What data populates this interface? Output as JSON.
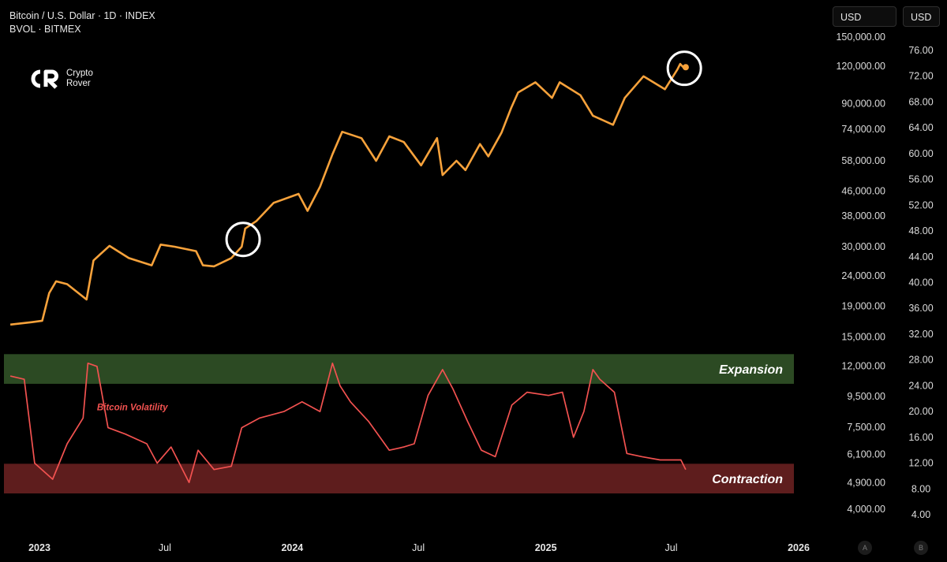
{
  "header": {
    "symbol_line": "Bitcoin / U.S. Dollar · 1D · INDEX",
    "indicator_line": "BVOL · BITMEX"
  },
  "logo": {
    "line1": "Crypto",
    "line2": "Rover"
  },
  "toolbar": {
    "left_unit": "USD",
    "right_unit": "USD"
  },
  "bottom_buttons": {
    "a": "A",
    "b": "B"
  },
  "colors": {
    "price": "#f7a23b",
    "volatility": "#f25250",
    "expansion": "#2c4a23",
    "contraction": "#5e1d1d"
  },
  "chart_data": {
    "type": "line",
    "title": "Bitcoin / U.S. Dollar · 1D · INDEX",
    "x_tick_labels": [
      "2023",
      "Jul",
      "2024",
      "Jul",
      "2025",
      "Jul",
      "2026"
    ],
    "x_range": [
      "2022-11-20",
      "2026-01-10"
    ],
    "log_scale_left": true,
    "left_axis": {
      "ticks": [
        "150,000.00",
        "120,000.00",
        "90,000.00",
        "74,000.00",
        "58,000.00",
        "46,000.00",
        "38,000.00",
        "30,000.00",
        "24,000.00",
        "19,000.00",
        "15,000.00",
        "12,000.00",
        "9,500.00",
        "7,500.00",
        "6,100.00",
        "4,900.00",
        "4,000.00"
      ]
    },
    "right_axis": {
      "ticks": [
        "76.00",
        "72.00",
        "68.00",
        "64.00",
        "60.00",
        "56.00",
        "52.00",
        "48.00",
        "44.00",
        "40.00",
        "36.00",
        "32.00",
        "28.00",
        "24.00",
        "20.00",
        "16.00",
        "12.00",
        "8.00",
        "4.00"
      ]
    },
    "series": [
      {
        "type": "line",
        "axis": "left",
        "x": [
          "2022-11-20",
          "2022-12-20",
          "2023-01-05",
          "2023-01-15",
          "2023-01-25",
          "2023-02-10",
          "2023-03-10",
          "2023-03-20",
          "2023-04-12",
          "2023-05-10",
          "2023-06-12",
          "2023-06-25",
          "2023-07-15",
          "2023-08-15",
          "2023-08-25",
          "2023-09-10",
          "2023-10-05",
          "2023-10-20",
          "2023-10-25",
          "2023-11-10",
          "2023-12-05",
          "2024-01-10",
          "2024-01-23",
          "2024-02-10",
          "2024-02-28",
          "2024-03-13",
          "2024-04-10",
          "2024-05-01",
          "2024-05-20",
          "2024-06-10",
          "2024-07-05",
          "2024-07-28",
          "2024-08-05",
          "2024-08-25",
          "2024-09-07",
          "2024-09-28",
          "2024-10-10",
          "2024-10-29",
          "2024-11-12",
          "2024-11-22",
          "2024-12-17",
          "2025-01-10",
          "2025-01-21",
          "2025-02-20",
          "2025-03-10",
          "2025-04-08",
          "2025-04-25",
          "2025-05-22",
          "2025-06-22",
          "2025-07-10",
          "2025-07-14",
          "2025-07-20",
          "2025-07-22"
        ],
        "y": [
          16500,
          16800,
          17000,
          21000,
          23000,
          22500,
          20000,
          27000,
          30200,
          27500,
          26000,
          30500,
          30000,
          29000,
          26000,
          25800,
          27500,
          30000,
          34500,
          36500,
          42000,
          45000,
          39500,
          47500,
          61000,
          72500,
          69000,
          58000,
          70000,
          67000,
          56000,
          69000,
          52000,
          58000,
          54000,
          66000,
          60000,
          72000,
          87000,
          98000,
          106000,
          94000,
          106000,
          96000,
          82000,
          76500,
          94000,
          111000,
          100500,
          117000,
          122000,
          118000,
          119000
        ]
      },
      {
        "type": "line",
        "axis": "right",
        "name": "Bitcoin Volatility",
        "x": [
          "2022-11-20",
          "2022-12-10",
          "2022-12-25",
          "2023-01-20",
          "2023-02-10",
          "2023-03-05",
          "2023-03-12",
          "2023-03-25",
          "2023-04-10",
          "2023-05-05",
          "2023-06-05",
          "2023-06-20",
          "2023-07-10",
          "2023-08-05",
          "2023-08-18",
          "2023-09-10",
          "2023-10-05",
          "2023-10-20",
          "2023-11-15",
          "2023-12-20",
          "2024-01-15",
          "2024-02-10",
          "2024-02-28",
          "2024-03-10",
          "2024-03-25",
          "2024-04-20",
          "2024-05-20",
          "2024-06-10",
          "2024-06-25",
          "2024-07-15",
          "2024-08-05",
          "2024-08-20",
          "2024-09-10",
          "2024-09-30",
          "2024-10-20",
          "2024-11-13",
          "2024-12-05",
          "2025-01-05",
          "2025-01-25",
          "2025-02-10",
          "2025-02-25",
          "2025-03-10",
          "2025-03-20",
          "2025-04-10",
          "2025-04-28",
          "2025-05-20",
          "2025-06-15",
          "2025-07-15",
          "2025-07-22"
        ],
        "y": [
          25.5,
          25.0,
          12.0,
          9.5,
          15.0,
          19.0,
          27.5,
          27.0,
          17.5,
          16.5,
          15.0,
          12.0,
          14.5,
          9.0,
          14.0,
          11.0,
          11.5,
          17.5,
          19.0,
          20.0,
          21.5,
          20.0,
          27.5,
          24.0,
          21.5,
          18.5,
          14.0,
          14.5,
          15.0,
          22.5,
          26.5,
          23.5,
          18.5,
          14.0,
          13.0,
          21.0,
          23.0,
          22.5,
          23.0,
          16.0,
          20.0,
          26.5,
          25.0,
          23.0,
          13.5,
          13.0,
          12.5,
          12.5,
          11.0
        ]
      }
    ],
    "annotations": [
      {
        "type": "band",
        "axis": "right",
        "y_range": [
          24.3,
          28.9
        ],
        "label": "Expansion"
      },
      {
        "type": "band",
        "axis": "right",
        "y_range": [
          7.3,
          11.9
        ],
        "label": "Contraction"
      },
      {
        "type": "marker",
        "x": "2023-10-22",
        "series": "price"
      },
      {
        "type": "marker",
        "x": "2025-07-20",
        "series": "price"
      }
    ]
  }
}
